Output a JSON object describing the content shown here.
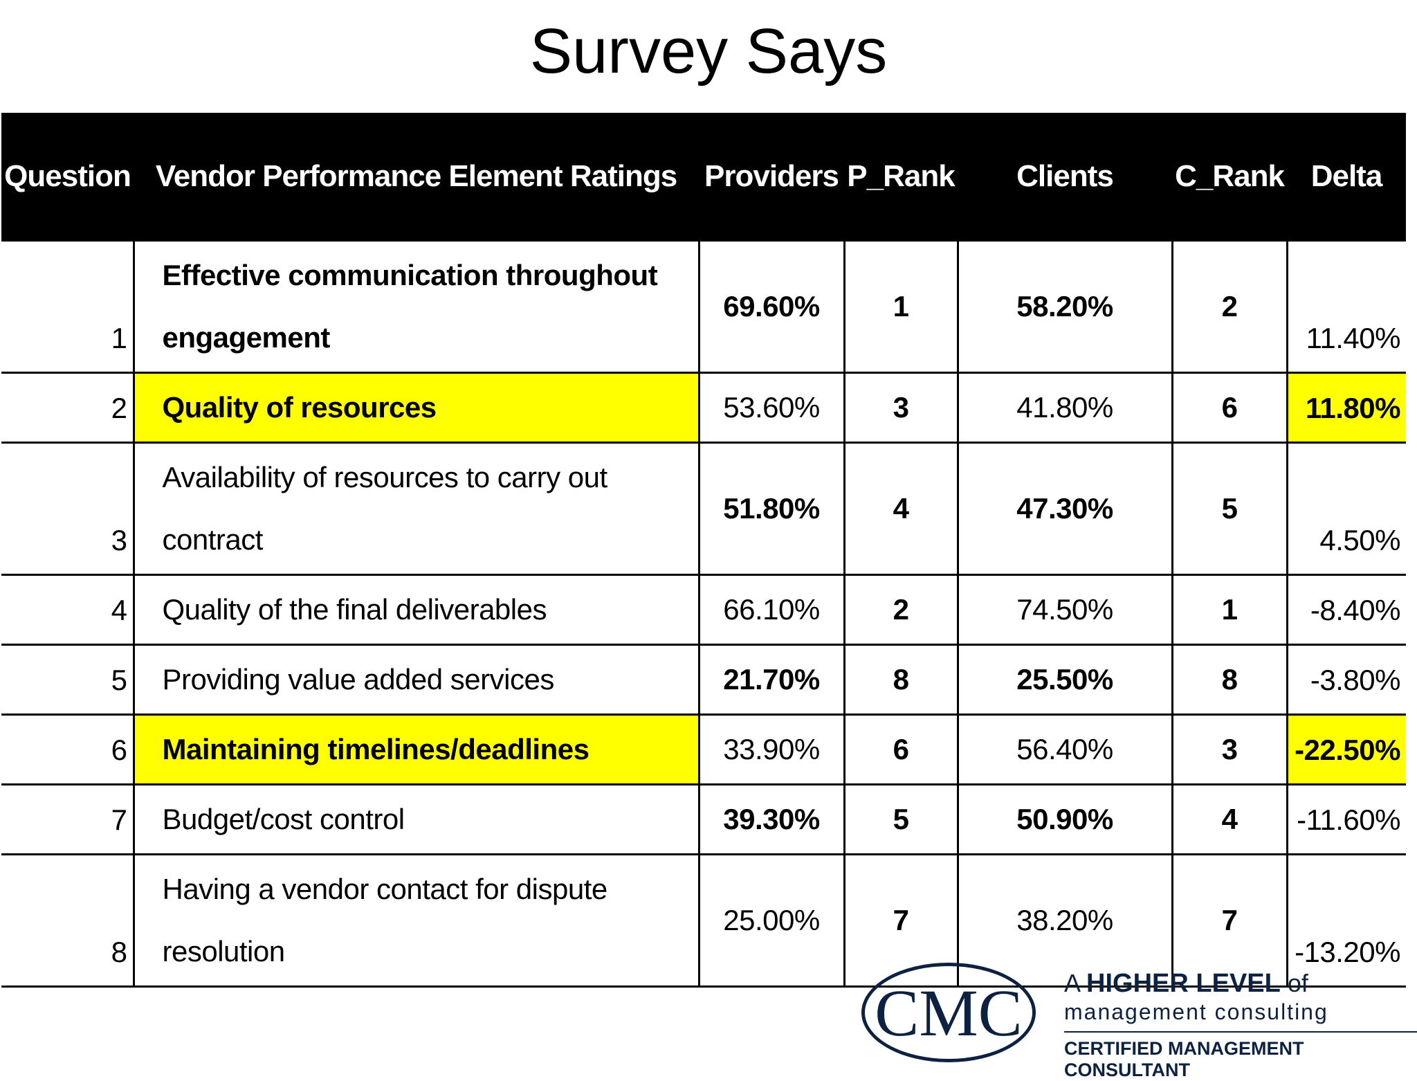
{
  "title": "Survey Says",
  "table": {
    "header": [
      "Question",
      "Vendor Performance Element Ratings",
      "Providers",
      "P_Rank",
      "Clients",
      "C_Rank",
      "Delta"
    ],
    "rows": [
      [
        "1",
        "Effective communication throughout engagement",
        "69.60%",
        "1",
        "58.20%",
        "2",
        "11.40%"
      ],
      [
        "2",
        "Quality of resources",
        "53.60%",
        "3",
        "41.80%",
        "6",
        "11.80%"
      ],
      [
        "3",
        "Availability of resources to carry out contract",
        "51.80%",
        "4",
        "47.30%",
        "5",
        "4.50%"
      ],
      [
        "4",
        "Quality of the final deliverables",
        "66.10%",
        "2",
        "74.50%",
        "1",
        "-8.40%"
      ],
      [
        "5",
        "Providing value added services",
        "21.70%",
        "8",
        "25.50%",
        "8",
        "-3.80%"
      ],
      [
        "6",
        "Maintaining timelines/deadlines",
        "33.90%",
        "6",
        "56.40%",
        "3",
        "-22.50%"
      ],
      [
        "7",
        "Budget/cost control",
        "39.30%",
        "5",
        "50.90%",
        "4",
        "-11.60%"
      ],
      [
        "8",
        "Having a vendor contact for dispute resolution",
        "25.00%",
        "7",
        "38.20%",
        "7",
        "-13.20%"
      ]
    ]
  },
  "logo": {
    "mark": "CMC",
    "prefix": "A",
    "main": "HIGHER LEVEL",
    "suffix": "of",
    "sub": "management consulting",
    "certification": "CERTIFIED MANAGEMENT CONSULTANT"
  }
}
